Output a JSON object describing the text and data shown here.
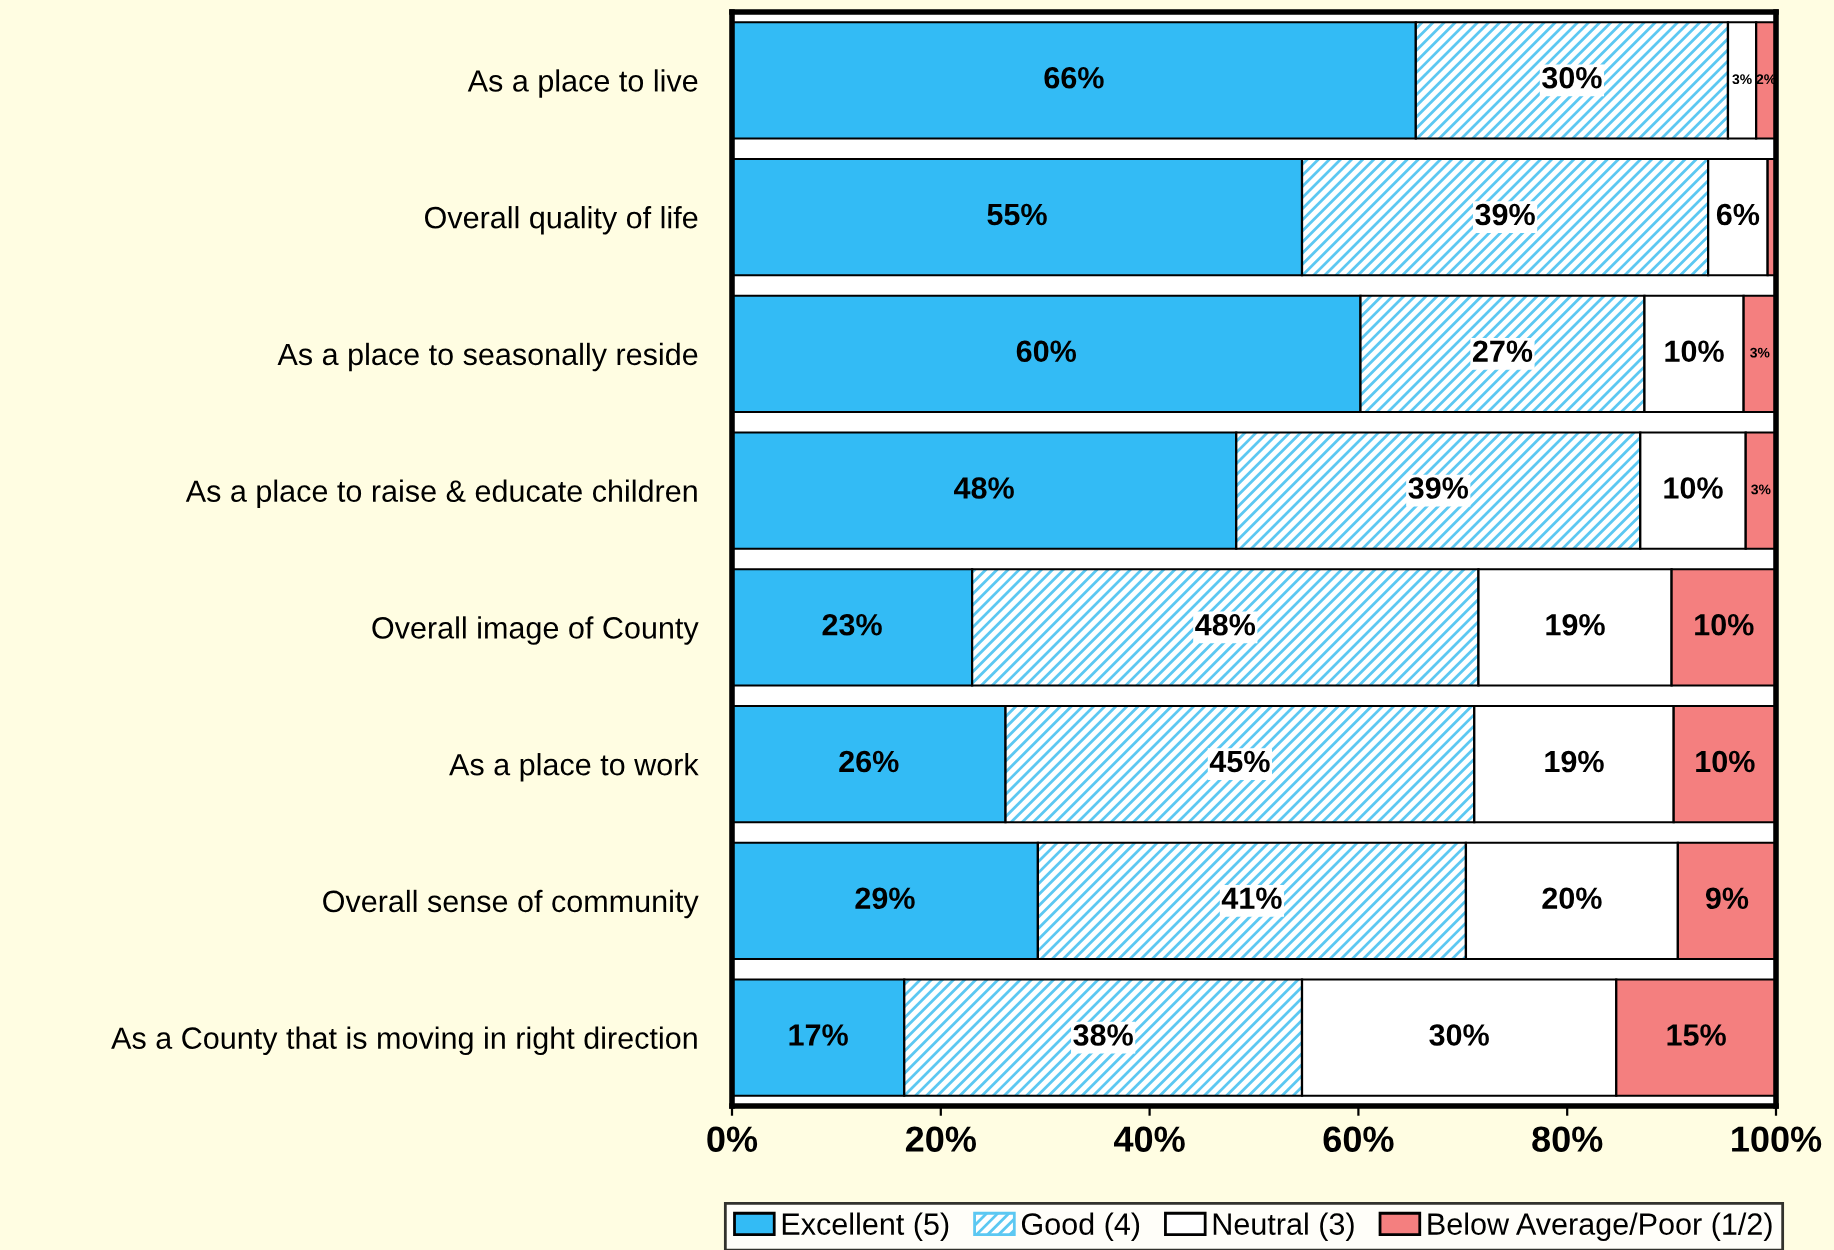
{
  "chart_data": {
    "type": "bar",
    "orientation": "horizontal",
    "stacked": true,
    "categories": [
      "As a place to live",
      "Overall quality of life",
      "As a place to seasonally reside",
      "As a place to raise & educate children",
      "Overall image of County",
      "As a place to work",
      "Overall sense of community",
      "As a County that is moving in right direction"
    ],
    "series": [
      {
        "name": "Excellent (5)",
        "color": "#33bbf5",
        "values": [
          65.5,
          54.6,
          60.2,
          48.3,
          23.0,
          26.2,
          29.3,
          16.5
        ],
        "value_labels": [
          "66%",
          "55%",
          "60%",
          "48%",
          "23%",
          "26%",
          "29%",
          "17%"
        ]
      },
      {
        "name": "Good (4)",
        "color": "#5cc8f2",
        "values": [
          29.9,
          38.9,
          27.2,
          38.7,
          48.5,
          44.9,
          41.0,
          38.1
        ],
        "value_labels": [
          "30%",
          "39%",
          "27%",
          "39%",
          "48%",
          "45%",
          "41%",
          "38%"
        ]
      },
      {
        "name": "Neutral (3)",
        "color": "#ffffff",
        "values": [
          2.7,
          5.7,
          9.5,
          10.1,
          18.5,
          19.1,
          20.3,
          30.1
        ],
        "value_labels": [
          "3%",
          "6%",
          "10%",
          "10%",
          "19%",
          "19%",
          "20%",
          "30%"
        ]
      },
      {
        "name": "Below Average/Poor (1/2)",
        "color": "#f47f7f",
        "values": [
          1.9,
          0.8,
          3.1,
          2.9,
          10.0,
          9.8,
          9.4,
          15.3
        ],
        "value_labels": [
          "2%",
          null,
          "3%",
          "3%",
          "10%",
          "10%",
          "9%",
          "15%"
        ]
      }
    ],
    "xlim": [
      0,
      100
    ],
    "xticks": [
      {
        "value": 0,
        "label": "0%"
      },
      {
        "value": 20,
        "label": "20%"
      },
      {
        "value": 40,
        "label": "40%"
      },
      {
        "value": 60,
        "label": "60%"
      },
      {
        "value": 80,
        "label": "80%"
      },
      {
        "value": 100,
        "label": "100%"
      }
    ],
    "grid": false,
    "legend": "bottom"
  }
}
